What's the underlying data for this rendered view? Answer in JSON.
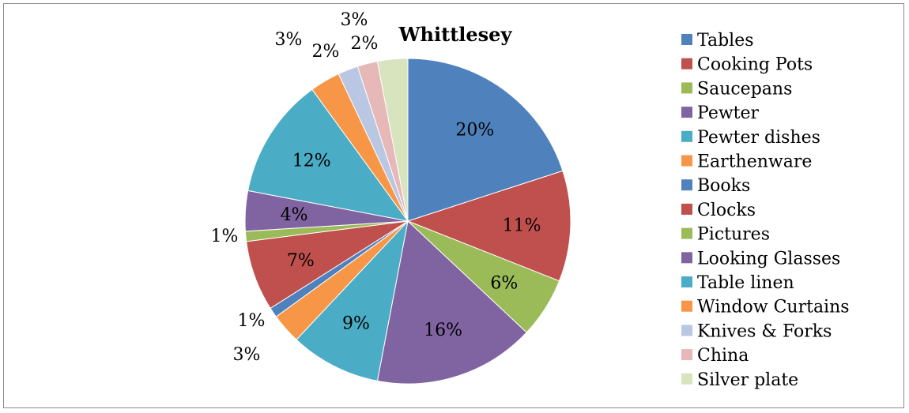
{
  "chart_data": {
    "type": "pie",
    "title": "Whittlesey",
    "legend_position": "right",
    "slices": [
      {
        "label": "Tables",
        "value": 20,
        "display": "20%",
        "color": "#4f81bd"
      },
      {
        "label": "Cooking Pots",
        "value": 11,
        "display": "11%",
        "color": "#c0504d"
      },
      {
        "label": "Saucepans",
        "value": 6,
        "display": "6%",
        "color": "#9bbb59"
      },
      {
        "label": "Pewter",
        "value": 16,
        "display": "16%",
        "color": "#8064a2"
      },
      {
        "label": "Pewter dishes",
        "value": 9,
        "display": "9%",
        "color": "#4bacc6"
      },
      {
        "label": "Earthenware",
        "value": 3,
        "display": "3%",
        "color": "#f79646"
      },
      {
        "label": "Books",
        "value": 1,
        "display": "1%",
        "color": "#4f81bd"
      },
      {
        "label": "Clocks",
        "value": 7,
        "display": "7%",
        "color": "#c0504d"
      },
      {
        "label": "Pictures",
        "value": 1,
        "display": "1%",
        "color": "#9bbb59"
      },
      {
        "label": "Looking Glasses",
        "value": 4,
        "display": "4%",
        "color": "#8064a2"
      },
      {
        "label": "Table linen",
        "value": 12,
        "display": "12%",
        "color": "#4bacc6"
      },
      {
        "label": "Window Curtains",
        "value": 3,
        "display": "3%",
        "color": "#f79646"
      },
      {
        "label": "Knives & Forks",
        "value": 2,
        "display": "2%",
        "color": "#b9c7e2"
      },
      {
        "label": "China",
        "value": 2,
        "display": "2%",
        "color": "#e6b9b8"
      },
      {
        "label": "Silver plate",
        "value": 3,
        "display": "3%",
        "color": "#d7e4bd"
      }
    ]
  }
}
